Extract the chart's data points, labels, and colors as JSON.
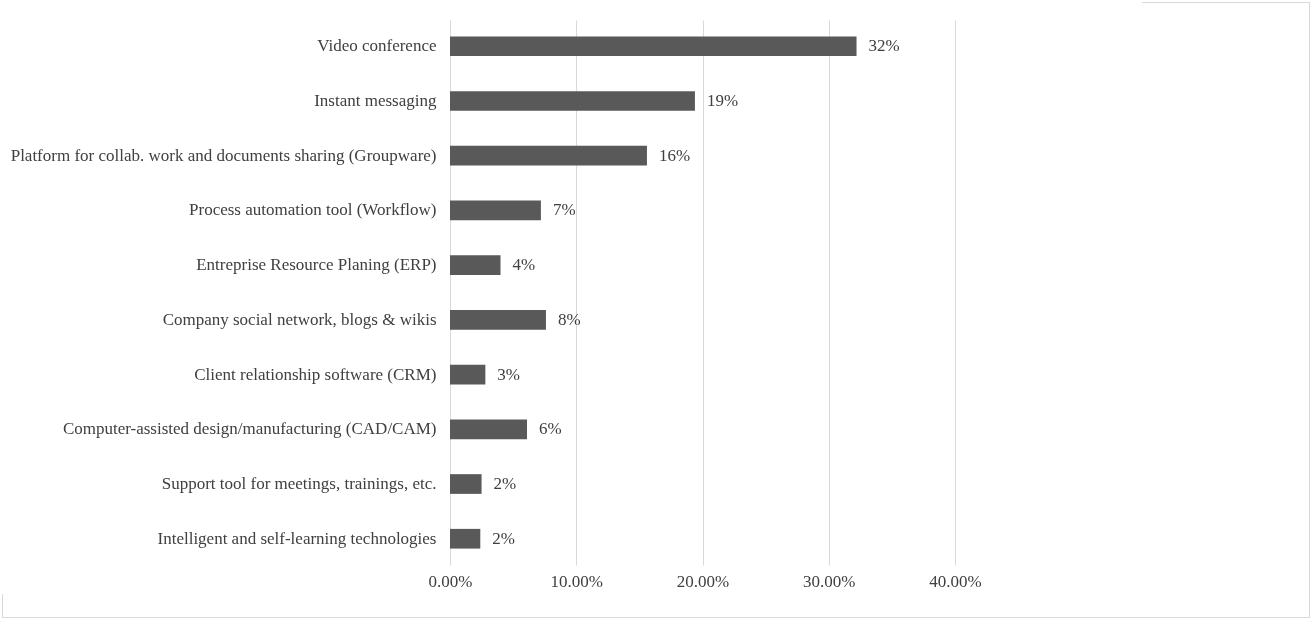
{
  "chart_data": {
    "type": "bar",
    "orientation": "horizontal",
    "categories": [
      "Video conference",
      "Instant messaging",
      "Platform for collab. work and documents sharing (Groupware)",
      "Process automation tool (Workflow)",
      "Entreprise Resource Planing (ERP)",
      "Company social network, blogs & wikis",
      "Client relationship software (CRM)",
      "Computer-assisted design/manufacturing (CAD/CAM)",
      "Support tool for meetings, trainings, etc.",
      "Intelligent and self-learning technologies"
    ],
    "values": [
      32.2,
      19.4,
      15.6,
      7.2,
      4.0,
      7.6,
      2.8,
      6.1,
      2.5,
      2.4
    ],
    "value_labels": [
      "32%",
      "19%",
      "16%",
      "7%",
      "4%",
      "8%",
      "3%",
      "6%",
      "2%",
      "2%"
    ],
    "color": "#595959",
    "xlim": [
      0,
      40
    ],
    "xticks": [
      {
        "value": 0,
        "label": "0.00%"
      },
      {
        "value": 10,
        "label": "10.00%"
      },
      {
        "value": 20,
        "label": "20.00%"
      },
      {
        "value": 30,
        "label": "30.00%"
      },
      {
        "value": 40,
        "label": "40.00%"
      }
    ],
    "grid": "x"
  }
}
